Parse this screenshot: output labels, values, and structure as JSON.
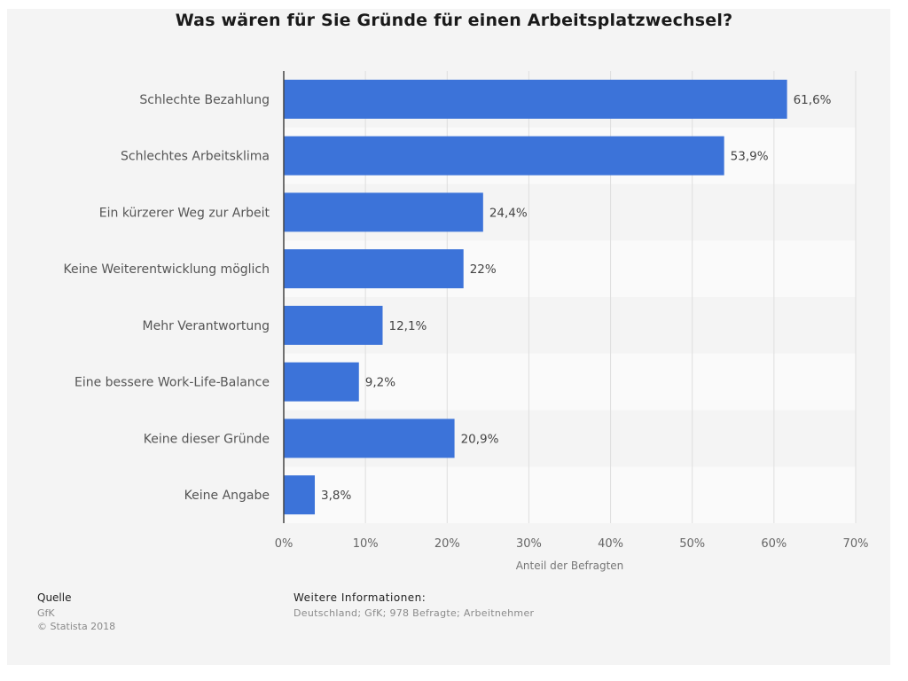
{
  "chart_data": {
    "type": "bar",
    "orientation": "horizontal",
    "title": "Was wären für Sie Gründe für einen Arbeitsplatzwechsel?",
    "categories": [
      "Schlechte Bezahlung",
      "Schlechtes Arbeitsklima",
      "Ein kürzerer Weg zur Arbeit",
      "Keine Weiterentwicklung möglich",
      "Mehr Verantwortung",
      "Eine bessere Work-Life-Balance",
      "Keine dieser Gründe",
      "Keine Angabe"
    ],
    "values": [
      61.6,
      53.9,
      24.4,
      22,
      12.1,
      9.2,
      20.9,
      3.8
    ],
    "value_labels": [
      "61,6%",
      "53,9%",
      "24,4%",
      "22%",
      "12,1%",
      "9,2%",
      "20,9%",
      "3,8%"
    ],
    "xlabel": "Anteil der Befragten",
    "xlim": [
      0,
      70
    ],
    "xticks": [
      0,
      10,
      20,
      30,
      40,
      50,
      60,
      70
    ],
    "xtick_labels": [
      "0%",
      "10%",
      "20%",
      "30%",
      "40%",
      "50%",
      "60%",
      "70%"
    ],
    "grid": true,
    "bar_color": "#3c73d9"
  },
  "footer": {
    "source_heading": "Quelle",
    "source_name": "GfK",
    "copyright": "© Statista 2018",
    "info_heading": "Weitere Informationen:",
    "info_text": "Deutschland; GfK; 978 Befragte; Arbeitnehmer"
  }
}
